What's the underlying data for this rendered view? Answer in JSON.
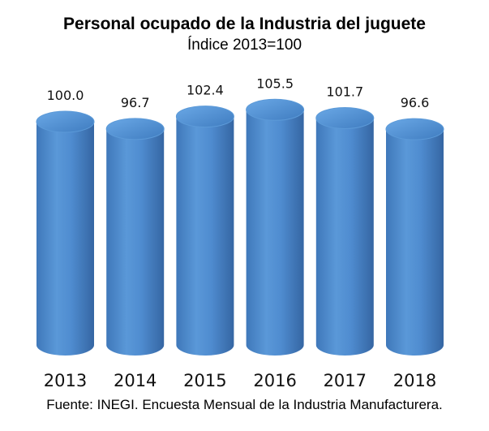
{
  "chart_data": {
    "type": "bar",
    "title": "Personal ocupado de la Industria del juguete",
    "subtitle": "Índice 2013=100",
    "categories": [
      "2013",
      "2014",
      "2015",
      "2016",
      "2017",
      "2018"
    ],
    "values": [
      100.0,
      96.7,
      102.4,
      105.5,
      101.7,
      96.6
    ],
    "value_labels": [
      "100.0",
      "96.7",
      "102.4",
      "105.5",
      "101.7",
      "96.6"
    ],
    "xlabel": "",
    "ylabel": "",
    "ylim": [
      0,
      110
    ],
    "grid": false,
    "legend": "none",
    "bar_style": "cylinder",
    "bar_color": "#4a86c8",
    "source": "Fuente: INEGI. Encuesta Mensual de la Industria Manufacturera."
  }
}
